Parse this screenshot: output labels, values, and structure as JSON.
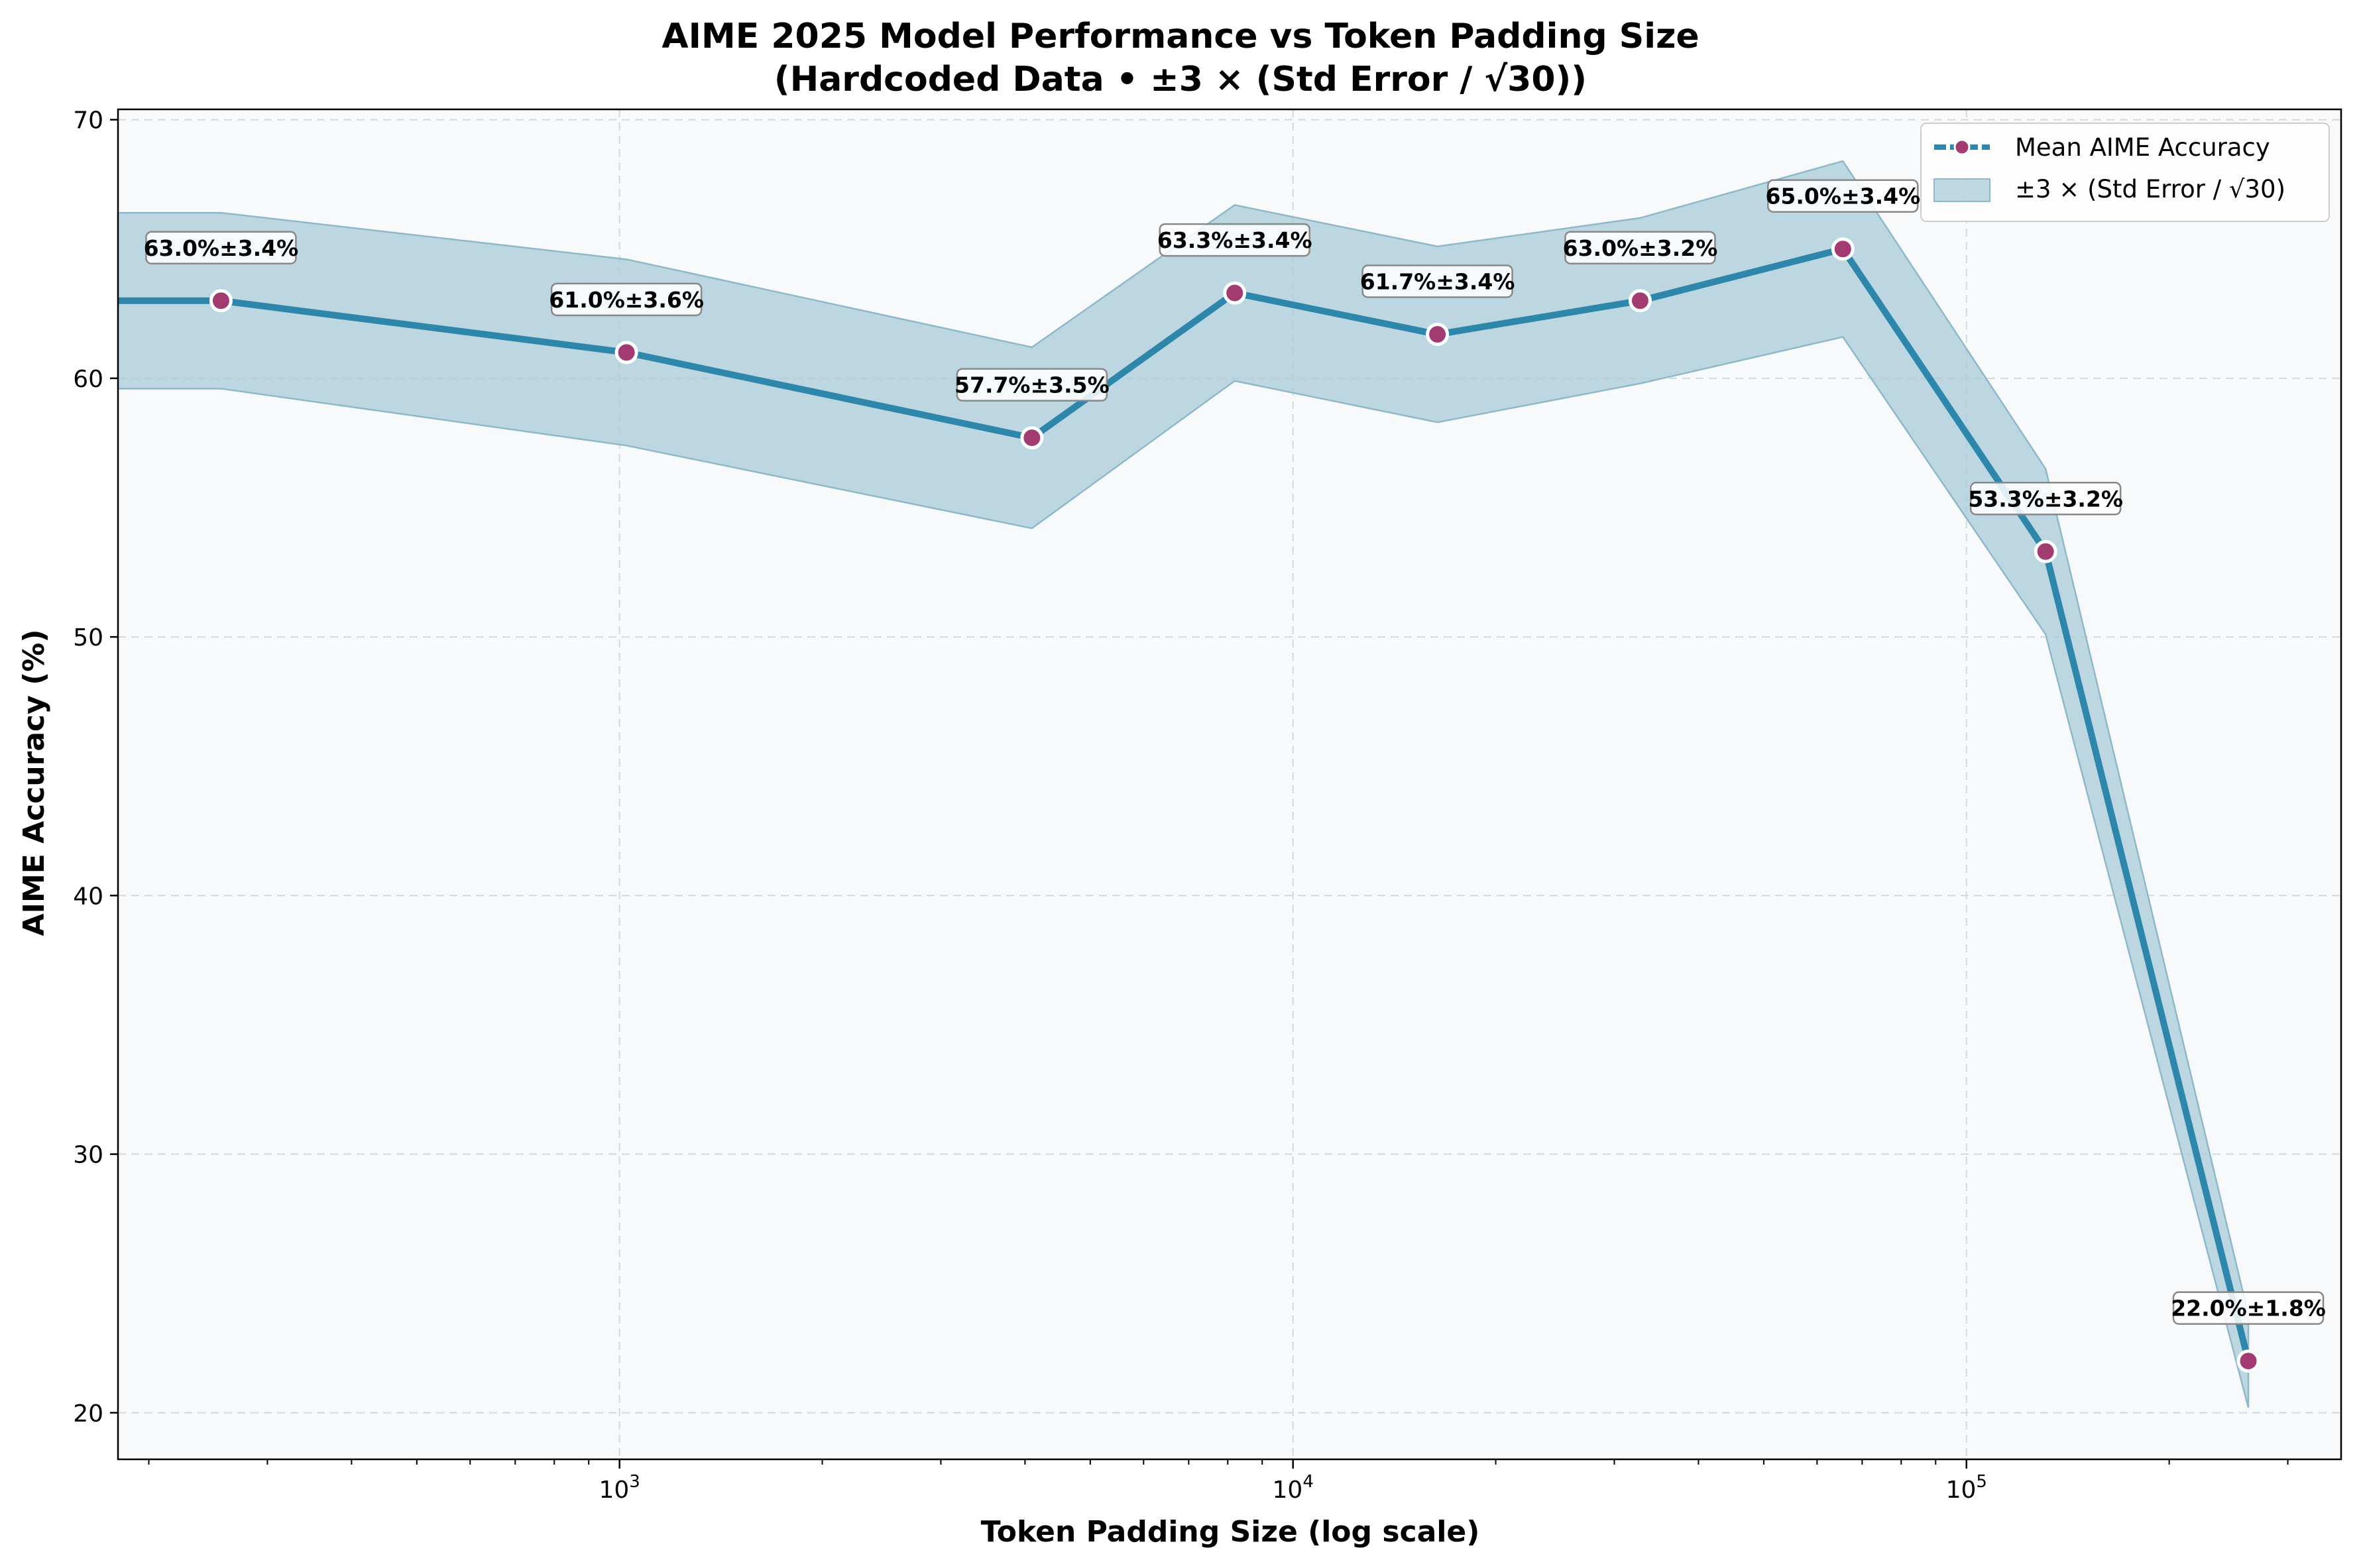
{
  "chart_data": {
    "type": "line",
    "title": "AIME 2025 Model Performance vs Token Padding Size",
    "subtitle": "(Hardcoded Data • ±3 × (Std Error / √30))",
    "xlabel": "Token Padding Size (log scale)",
    "ylabel": "AIME Accuracy (%)",
    "xscale": "log",
    "xlim": [
      180,
      360000
    ],
    "ylim": [
      18.2,
      70.4
    ],
    "yticks": [
      20,
      30,
      40,
      50,
      60,
      70
    ],
    "xticks": [
      {
        "value": 1000,
        "base": "10",
        "exp": "3"
      },
      {
        "value": 10000,
        "base": "10",
        "exp": "4"
      },
      {
        "value": 100000,
        "base": "10",
        "exp": "5"
      }
    ],
    "grid": true,
    "legend_position": "top-right",
    "series": [
      {
        "name": "Mean AIME Accuracy",
        "x": [
          256,
          1024,
          4096,
          8192,
          16384,
          32768,
          65536,
          131072,
          262144
        ],
        "y": [
          63.0,
          61.0,
          57.7,
          63.3,
          61.7,
          63.0,
          65.0,
          53.3,
          22.0
        ],
        "err": [
          3.4,
          3.6,
          3.5,
          3.4,
          3.4,
          3.2,
          3.4,
          3.2,
          1.8
        ],
        "labels": [
          "63.0%±3.4%",
          "61.0%±3.6%",
          "57.7%±3.5%",
          "63.3%±3.4%",
          "61.7%±3.4%",
          "63.0%±3.2%",
          "65.0%±3.4%",
          "53.3%±3.2%",
          "22.0%±1.8%"
        ]
      }
    ],
    "band_label": "±3 × (Std Error / √30)",
    "colors": {
      "line": "#2e86ab",
      "marker": "#a23b72",
      "band": "#a9cbd9",
      "plot_bg": "#f7f9fa"
    }
  }
}
